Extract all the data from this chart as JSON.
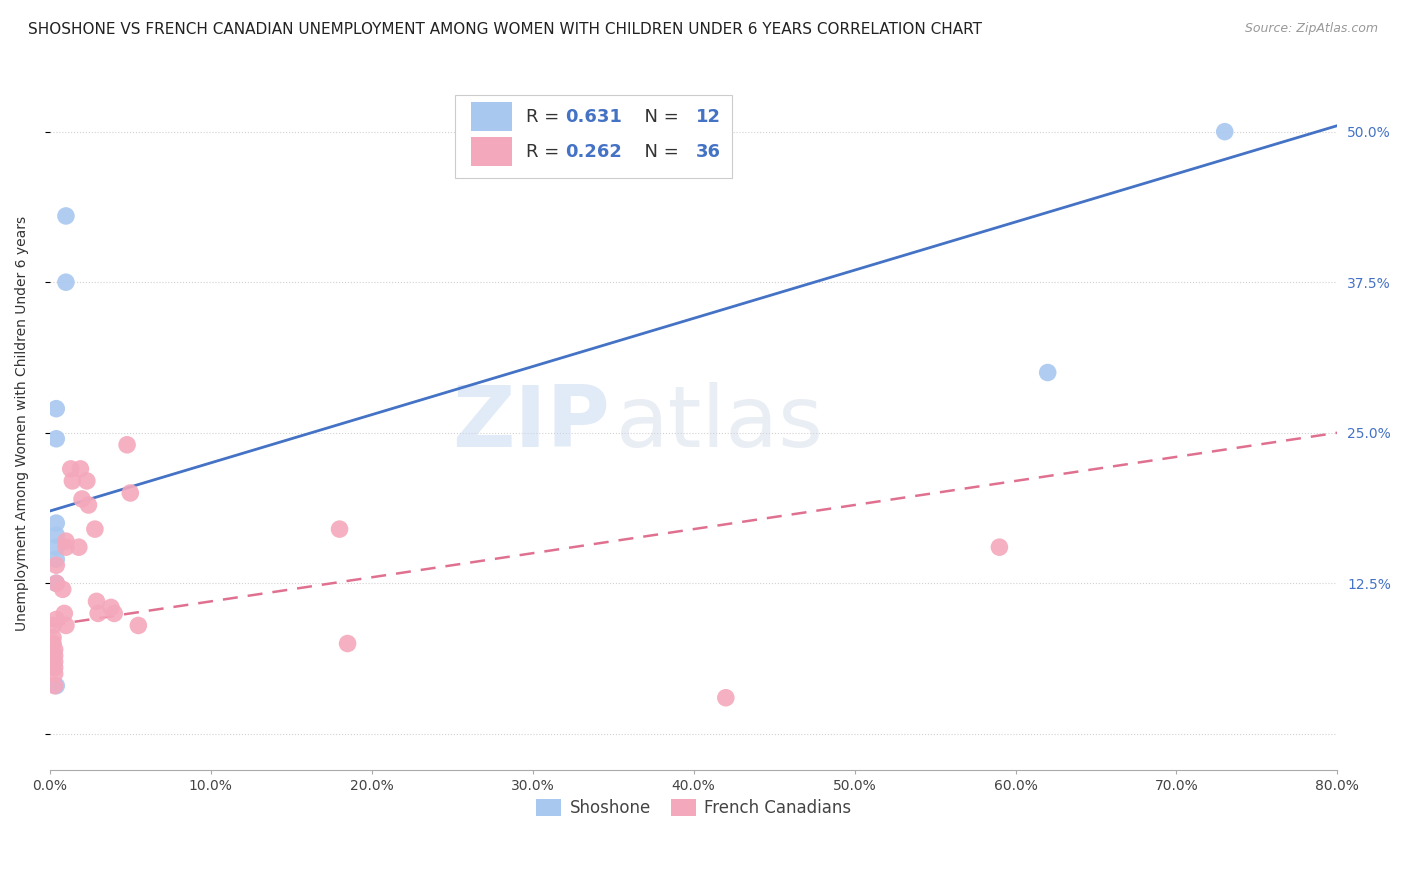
{
  "title": "SHOSHONE VS FRENCH CANADIAN UNEMPLOYMENT AMONG WOMEN WITH CHILDREN UNDER 6 YEARS CORRELATION CHART",
  "source": "Source: ZipAtlas.com",
  "ylabel": "Unemployment Among Women with Children Under 6 years",
  "xmin": 0.0,
  "xmax": 0.8,
  "ymin": -0.03,
  "ymax": 0.545,
  "shoshone_color": "#A8C8F0",
  "french_color": "#F4A8BC",
  "shoshone_line_color": "#4472C4",
  "french_line_color": "#E07090",
  "legend_R_shoshone": "0.631",
  "legend_N_shoshone": "12",
  "legend_R_french": "0.262",
  "legend_N_french": "36",
  "watermark_zip": "ZIP",
  "watermark_atlas": "atlas",
  "shoshone_x": [
    0.01,
    0.01,
    0.004,
    0.004,
    0.004,
    0.004,
    0.004,
    0.004,
    0.004,
    0.004,
    0.62,
    0.73
  ],
  "shoshone_y": [
    0.43,
    0.375,
    0.27,
    0.245,
    0.175,
    0.165,
    0.155,
    0.145,
    0.125,
    0.04,
    0.3,
    0.5
  ],
  "french_x": [
    0.002,
    0.002,
    0.002,
    0.003,
    0.003,
    0.003,
    0.003,
    0.003,
    0.003,
    0.004,
    0.004,
    0.004,
    0.008,
    0.009,
    0.01,
    0.01,
    0.01,
    0.013,
    0.014,
    0.018,
    0.019,
    0.02,
    0.023,
    0.024,
    0.028,
    0.029,
    0.03,
    0.038,
    0.04,
    0.048,
    0.05,
    0.055,
    0.18,
    0.185,
    0.42,
    0.59
  ],
  "french_y": [
    0.09,
    0.08,
    0.075,
    0.07,
    0.065,
    0.06,
    0.055,
    0.05,
    0.04,
    0.14,
    0.125,
    0.095,
    0.12,
    0.1,
    0.16,
    0.155,
    0.09,
    0.22,
    0.21,
    0.155,
    0.22,
    0.195,
    0.21,
    0.19,
    0.17,
    0.11,
    0.1,
    0.105,
    0.1,
    0.24,
    0.2,
    0.09,
    0.17,
    0.075,
    0.03,
    0.155
  ],
  "shoshone_trendline_x": [
    0.0,
    0.8
  ],
  "shoshone_trendline_y": [
    0.185,
    0.505
  ],
  "french_trendline_x": [
    0.0,
    0.8
  ],
  "french_trendline_y": [
    0.09,
    0.25
  ],
  "background_color": "#FFFFFF",
  "grid_color": "#CCCCCC",
  "title_fontsize": 11,
  "axis_label_fontsize": 10,
  "tick_fontsize": 10,
  "legend_fontsize": 13
}
